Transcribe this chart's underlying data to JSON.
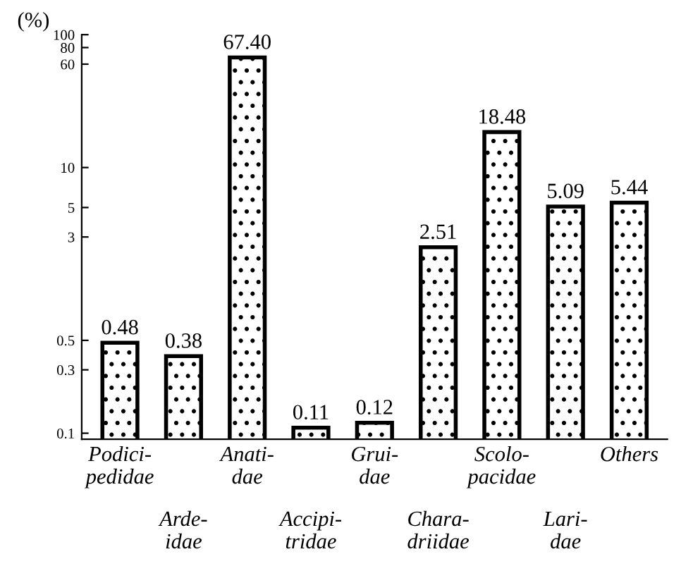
{
  "chart_data": {
    "type": "bar",
    "ylabel": "(%)",
    "categories": [
      "Podici-\npedidae",
      "Arde-\nidae",
      "Anati-\ndae",
      "Accipi-\ntridae",
      "Grui-\ndae",
      "Chara-\ndriidae",
      "Scolo-\npacidae",
      "Lari-\ndae",
      "Others"
    ],
    "values": [
      0.48,
      0.38,
      67.4,
      0.11,
      0.12,
      2.51,
      18.48,
      5.09,
      5.44
    ],
    "value_labels": [
      "0.48",
      "0.38",
      "67.40",
      "0.11",
      "0.12",
      "2.51",
      "18.48",
      "5.09",
      "5.44"
    ],
    "color": "#000000",
    "log": true,
    "ylim": [
      0.09,
      100
    ],
    "yticks": [
      0.1,
      0.3,
      0.5,
      3,
      5,
      10,
      60,
      80,
      100
    ]
  }
}
